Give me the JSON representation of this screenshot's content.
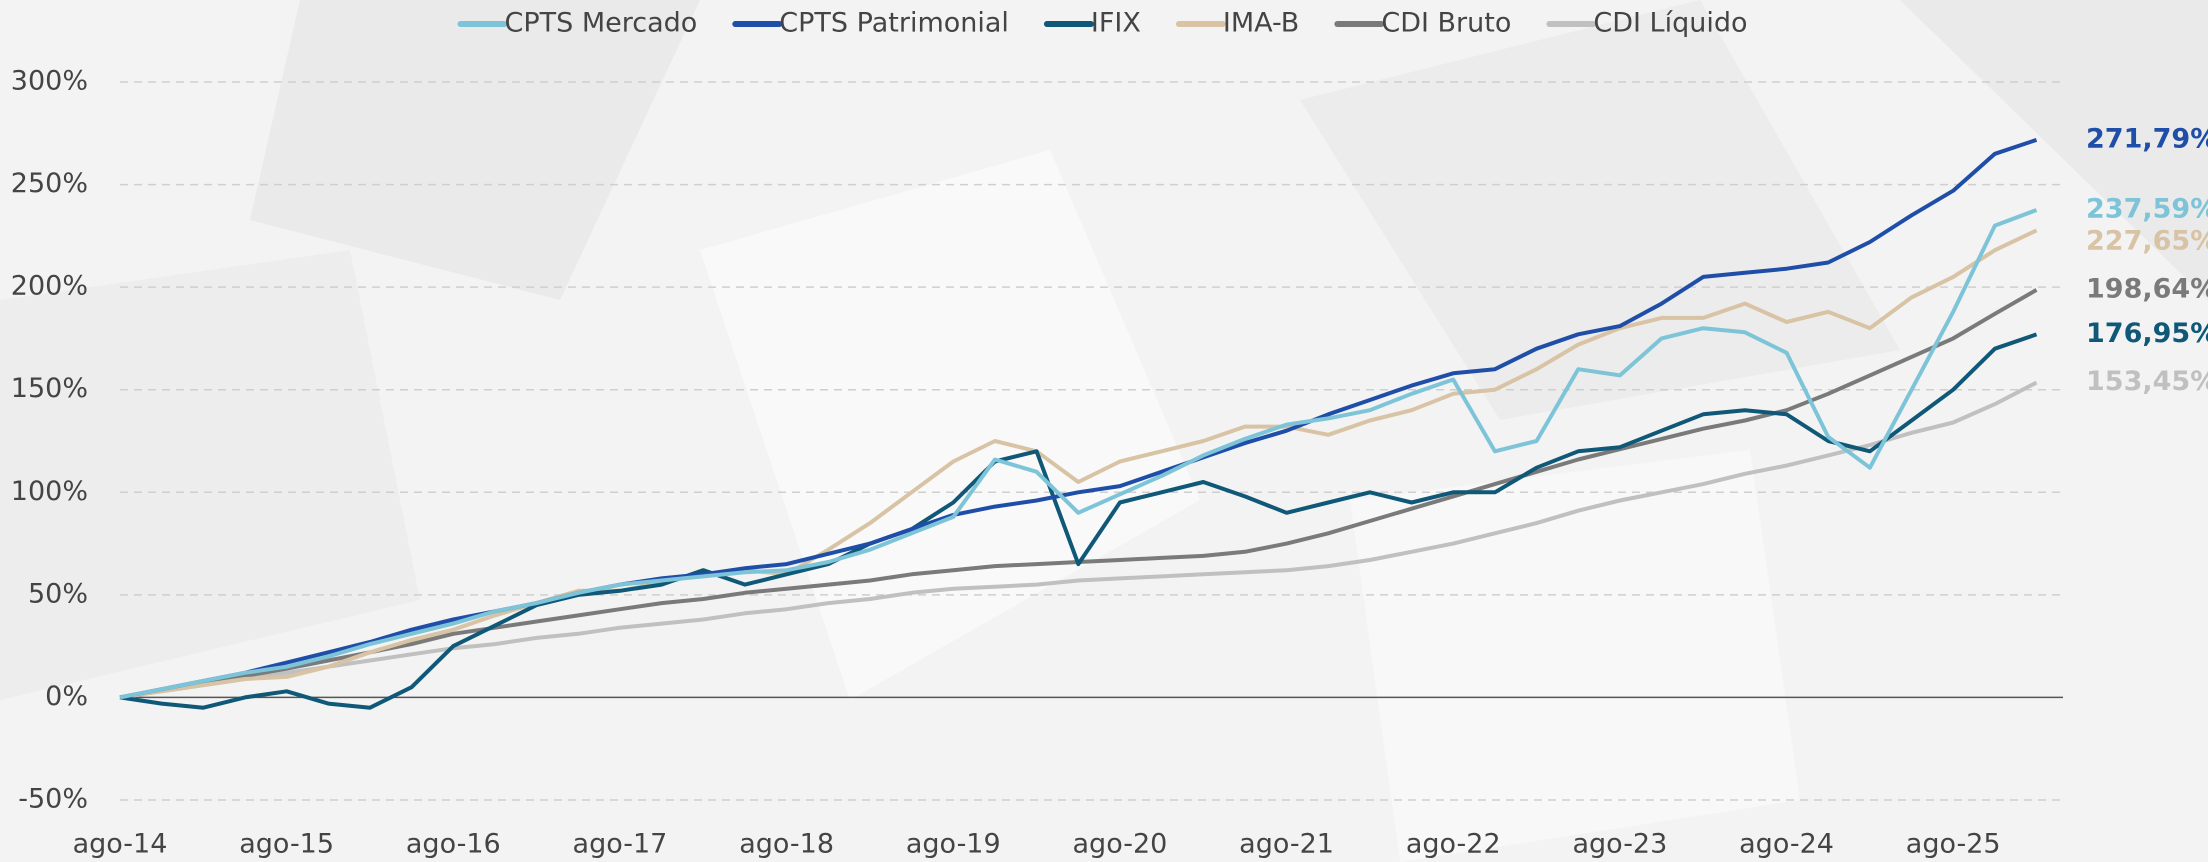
{
  "chart_data": {
    "type": "line",
    "categories": [
      "ago-14",
      null,
      null,
      null,
      "ago-15",
      null,
      null,
      null,
      "ago-16",
      null,
      null,
      null,
      "ago-17",
      null,
      null,
      null,
      "ago-18",
      null,
      null,
      null,
      "ago-19",
      null,
      null,
      null,
      "ago-20",
      null,
      null,
      null,
      "ago-21",
      null,
      null,
      null,
      "ago-22",
      null,
      null,
      null,
      "ago-23",
      null,
      null,
      null,
      "ago-24",
      null,
      null,
      null,
      "ago-25",
      null,
      null
    ],
    "ylim": [
      -50,
      300
    ],
    "yticks": [
      {
        "value": -50,
        "label": "-50%"
      },
      {
        "value": 0,
        "label": "0%"
      },
      {
        "value": 50,
        "label": "50%"
      },
      {
        "value": 100,
        "label": "100%"
      },
      {
        "value": 150,
        "label": "150%"
      },
      {
        "value": 200,
        "label": "200%"
      },
      {
        "value": 250,
        "label": "250%"
      },
      {
        "value": 300,
        "label": "300%"
      }
    ],
    "grid": true,
    "legend": "top",
    "series": [
      {
        "name": "CPTS Mercado",
        "color": "#7ec4d8",
        "values": [
          0,
          4,
          8,
          12,
          15,
          20,
          26,
          31,
          36,
          42,
          46,
          51,
          55,
          57,
          59,
          61,
          62,
          66,
          72,
          80,
          88,
          116,
          110,
          90,
          99,
          108,
          118,
          126,
          133,
          136,
          140,
          148,
          155,
          120,
          125,
          160,
          157,
          175,
          180,
          178,
          168,
          127,
          112,
          150,
          188,
          230,
          237.59
        ],
        "value_labels": [
          null,
          null,
          null,
          null,
          null,
          null,
          null,
          null,
          null,
          null,
          null,
          null,
          null,
          null,
          null,
          null,
          null,
          null,
          null,
          null,
          null,
          null,
          null,
          null,
          null,
          null,
          null,
          null,
          null,
          null,
          null,
          null,
          null,
          null,
          null,
          null,
          null,
          null,
          null,
          null,
          null,
          null,
          null,
          null,
          null,
          null,
          "237,59%"
        ]
      },
      {
        "name": "CPTS Patrimonial",
        "color": "#1f4ea8",
        "values": [
          0,
          4,
          8,
          12,
          17,
          22,
          27,
          33,
          38,
          42,
          46,
          51,
          55,
          58,
          60,
          63,
          65,
          70,
          75,
          82,
          89,
          93,
          96,
          100,
          103,
          110,
          117,
          124,
          130,
          138,
          145,
          152,
          158,
          160,
          170,
          177,
          181,
          192,
          205,
          207,
          209,
          212,
          222,
          235,
          247,
          265,
          271.79
        ],
        "value_labels": [
          null,
          null,
          null,
          null,
          null,
          null,
          null,
          null,
          null,
          null,
          null,
          null,
          null,
          null,
          null,
          null,
          null,
          null,
          null,
          null,
          null,
          null,
          null,
          null,
          null,
          null,
          null,
          null,
          null,
          null,
          null,
          null,
          null,
          null,
          null,
          null,
          null,
          null,
          null,
          null,
          null,
          null,
          null,
          null,
          null,
          null,
          "271,79%"
        ]
      },
      {
        "name": "IFIX",
        "color": "#0f5878",
        "values": [
          0,
          -3,
          -5,
          0,
          3,
          -3,
          -5,
          5,
          25,
          35,
          45,
          50,
          52,
          55,
          62,
          55,
          60,
          65,
          75,
          82,
          95,
          115,
          120,
          65,
          95,
          100,
          105,
          98,
          90,
          95,
          100,
          95,
          100,
          100,
          112,
          120,
          122,
          130,
          138,
          140,
          138,
          125,
          120,
          135,
          150,
          170,
          176.95
        ],
        "value_labels": [
          null,
          null,
          null,
          null,
          null,
          null,
          null,
          null,
          null,
          null,
          null,
          null,
          null,
          null,
          null,
          null,
          null,
          null,
          null,
          null,
          null,
          null,
          null,
          null,
          null,
          null,
          null,
          null,
          null,
          null,
          null,
          null,
          null,
          null,
          null,
          null,
          null,
          null,
          null,
          null,
          null,
          null,
          null,
          null,
          null,
          null,
          "176,95%"
        ]
      },
      {
        "name": "IMA-B",
        "color": "#d8c3a5",
        "values": [
          0,
          3,
          6,
          9,
          10,
          15,
          22,
          28,
          33,
          40,
          46,
          52,
          52,
          56,
          60,
          62,
          60,
          72,
          85,
          100,
          115,
          125,
          120,
          105,
          115,
          120,
          125,
          132,
          132,
          128,
          135,
          140,
          148,
          150,
          160,
          172,
          180,
          185,
          185,
          192,
          183,
          188,
          180,
          195,
          205,
          218,
          227.65
        ],
        "value_labels": [
          null,
          null,
          null,
          null,
          null,
          null,
          null,
          null,
          null,
          null,
          null,
          null,
          null,
          null,
          null,
          null,
          null,
          null,
          null,
          null,
          null,
          null,
          null,
          null,
          null,
          null,
          null,
          null,
          null,
          null,
          null,
          null,
          null,
          null,
          null,
          null,
          null,
          null,
          null,
          null,
          null,
          null,
          null,
          null,
          null,
          null,
          "227,65%"
        ]
      },
      {
        "name": "CDI Bruto",
        "color": "#7a7a7a",
        "values": [
          0,
          3.5,
          7,
          10.5,
          14,
          18,
          22,
          26,
          31,
          34,
          37,
          40,
          43,
          46,
          48,
          51,
          53,
          55,
          57,
          60,
          62,
          64,
          65,
          66,
          67,
          68,
          69,
          71,
          75,
          80,
          86,
          92,
          98,
          104,
          110,
          116,
          121,
          126,
          131,
          135,
          140,
          148,
          157,
          166,
          175,
          187,
          198.64
        ],
        "value_labels": [
          null,
          null,
          null,
          null,
          null,
          null,
          null,
          null,
          null,
          null,
          null,
          null,
          null,
          null,
          null,
          null,
          null,
          null,
          null,
          null,
          null,
          null,
          null,
          null,
          null,
          null,
          null,
          null,
          null,
          null,
          null,
          null,
          null,
          null,
          null,
          null,
          null,
          null,
          null,
          null,
          null,
          null,
          null,
          null,
          null,
          null,
          "198,64%"
        ]
      },
      {
        "name": "CDI Líquido",
        "color": "#c0c0c0",
        "values": [
          0,
          3,
          6,
          9,
          12,
          15,
          18,
          21,
          24,
          26,
          29,
          31,
          34,
          36,
          38,
          41,
          43,
          46,
          48,
          51,
          53,
          54,
          55,
          57,
          58,
          59,
          60,
          61,
          62,
          64,
          67,
          71,
          75,
          80,
          85,
          91,
          96,
          100,
          104,
          109,
          113,
          118,
          123,
          129,
          134,
          143,
          153.45
        ],
        "value_labels": [
          null,
          null,
          null,
          null,
          null,
          null,
          null,
          null,
          null,
          null,
          null,
          null,
          null,
          null,
          null,
          null,
          null,
          null,
          null,
          null,
          null,
          null,
          null,
          null,
          null,
          null,
          null,
          null,
          null,
          null,
          null,
          null,
          null,
          null,
          null,
          null,
          null,
          null,
          null,
          null,
          null,
          null,
          null,
          null,
          null,
          null,
          "153,45%"
        ]
      }
    ]
  }
}
